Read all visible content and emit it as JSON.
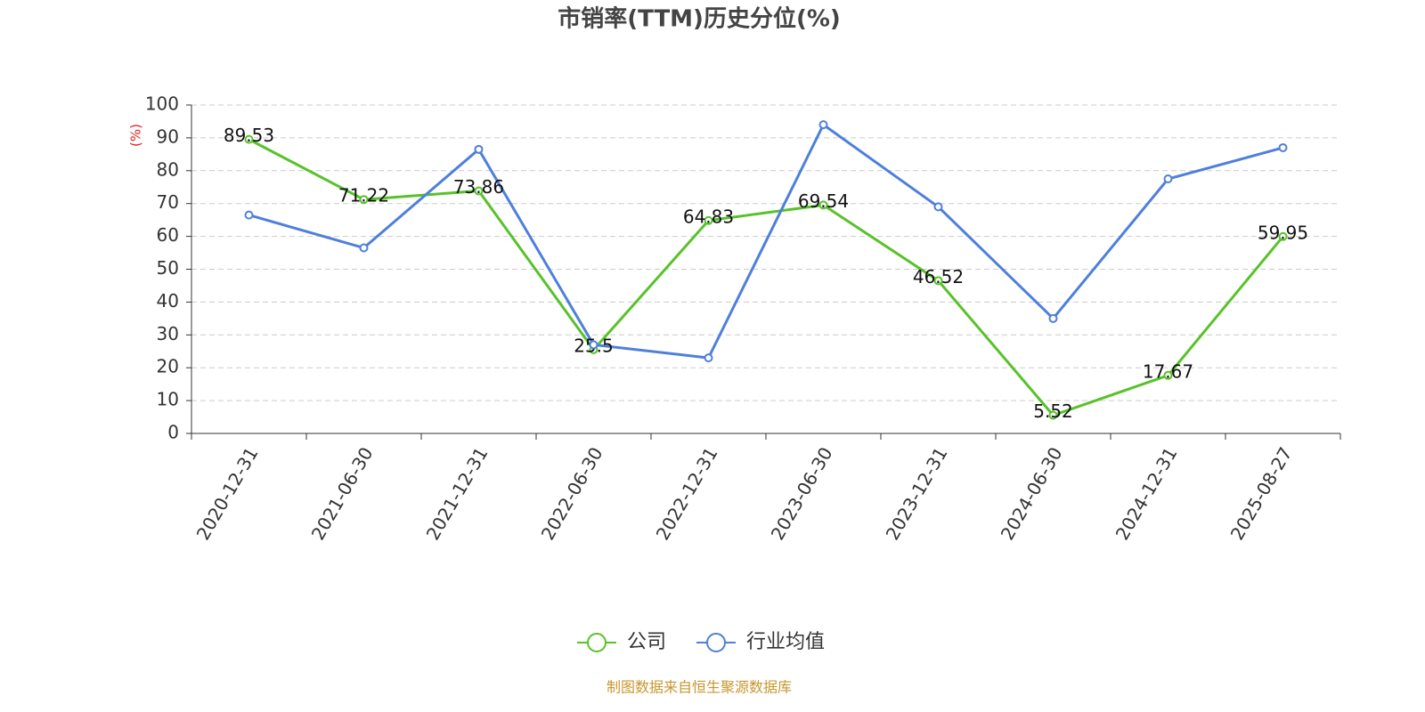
{
  "chart_data": {
    "type": "line",
    "title": "市销率(TTM)历史分位(%)",
    "ylabel": "(%)",
    "categories": [
      "2020-12-31",
      "2021-06-30",
      "2021-12-31",
      "2022-06-30",
      "2022-12-31",
      "2023-06-30",
      "2023-12-31",
      "2024-06-30",
      "2024-12-31",
      "2025-08-27"
    ],
    "series": [
      {
        "name": "公司",
        "color": "#58c22a",
        "show_labels": true,
        "values": [
          89.53,
          71.22,
          73.86,
          25.5,
          64.83,
          69.54,
          46.52,
          5.52,
          17.67,
          59.95
        ]
      },
      {
        "name": "行业均值",
        "color": "#4e7fdc",
        "show_labels": false,
        "values": [
          66.5,
          56.5,
          86.5,
          27,
          23,
          94,
          69,
          35,
          77.5,
          87
        ]
      }
    ],
    "ylim": [
      0,
      100
    ],
    "yticks": [
      0,
      10,
      20,
      30,
      40,
      50,
      60,
      70,
      80,
      90,
      100
    ],
    "grid": true,
    "source": "制图数据来自恒生聚源数据库"
  }
}
